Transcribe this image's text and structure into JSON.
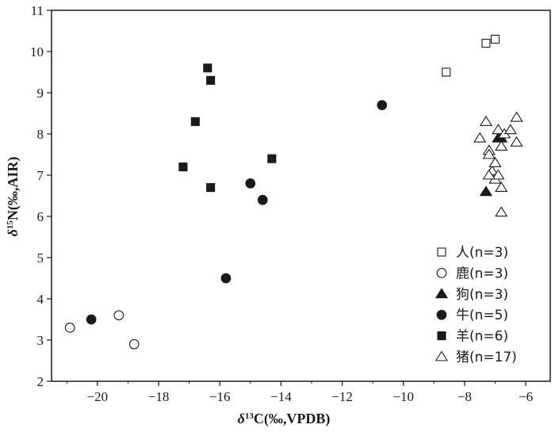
{
  "chart_data": {
    "type": "scatter",
    "xlabel_symbol": "δ",
    "xlabel_sup": "13",
    "xlabel_rest": "C(‰,VPDB)",
    "ylabel_symbol": "δ",
    "ylabel_sup": "15",
    "ylabel_rest": "N(‰,AIR)",
    "xlim": [
      -21.5,
      -5.2
    ],
    "ylim": [
      2,
      11
    ],
    "xticks": [
      -20,
      -18,
      -16,
      -14,
      -12,
      -10,
      -8,
      -6
    ],
    "yticks": [
      2,
      3,
      4,
      5,
      6,
      7,
      8,
      9,
      10,
      11
    ],
    "legend_position": "bottom-right",
    "series": [
      {
        "name": "人(n=3)",
        "marker": "square-open",
        "points": [
          [
            -8.6,
            9.5
          ],
          [
            -7.3,
            10.2
          ],
          [
            -7.0,
            10.3
          ]
        ]
      },
      {
        "name": "鹿(n=3)",
        "marker": "circle-open",
        "points": [
          [
            -20.9,
            3.3
          ],
          [
            -19.3,
            3.6
          ],
          [
            -18.8,
            2.9
          ]
        ]
      },
      {
        "name": "狗(n=3)",
        "marker": "triangle-filled",
        "points": [
          [
            -7.3,
            6.6
          ],
          [
            -6.9,
            7.9
          ],
          [
            -6.8,
            7.9
          ]
        ]
      },
      {
        "name": "牛(n=5)",
        "marker": "circle-filled",
        "points": [
          [
            -20.2,
            3.5
          ],
          [
            -15.8,
            4.5
          ],
          [
            -15.0,
            6.8
          ],
          [
            -14.6,
            6.4
          ],
          [
            -10.7,
            8.7
          ]
        ]
      },
      {
        "name": "羊(n=6)",
        "marker": "square-filled",
        "points": [
          [
            -17.2,
            7.2
          ],
          [
            -16.8,
            8.3
          ],
          [
            -16.4,
            9.6
          ],
          [
            -16.3,
            9.3
          ],
          [
            -16.3,
            6.7
          ],
          [
            -14.3,
            7.4
          ]
        ]
      },
      {
        "name": "猪(n=17)",
        "marker": "triangle-open",
        "points": [
          [
            -7.5,
            7.9
          ],
          [
            -7.3,
            8.3
          ],
          [
            -7.2,
            7.6
          ],
          [
            -7.2,
            7.5
          ],
          [
            -7.1,
            7.1
          ],
          [
            -7.0,
            7.3
          ],
          [
            -7.0,
            6.9
          ],
          [
            -6.9,
            7.0
          ],
          [
            -6.9,
            8.1
          ],
          [
            -6.8,
            7.7
          ],
          [
            -6.8,
            6.7
          ],
          [
            -6.8,
            6.1
          ],
          [
            -6.7,
            8.0
          ],
          [
            -6.5,
            8.1
          ],
          [
            -6.3,
            8.4
          ],
          [
            -6.3,
            7.8
          ],
          [
            -7.2,
            7.0
          ]
        ]
      }
    ]
  }
}
